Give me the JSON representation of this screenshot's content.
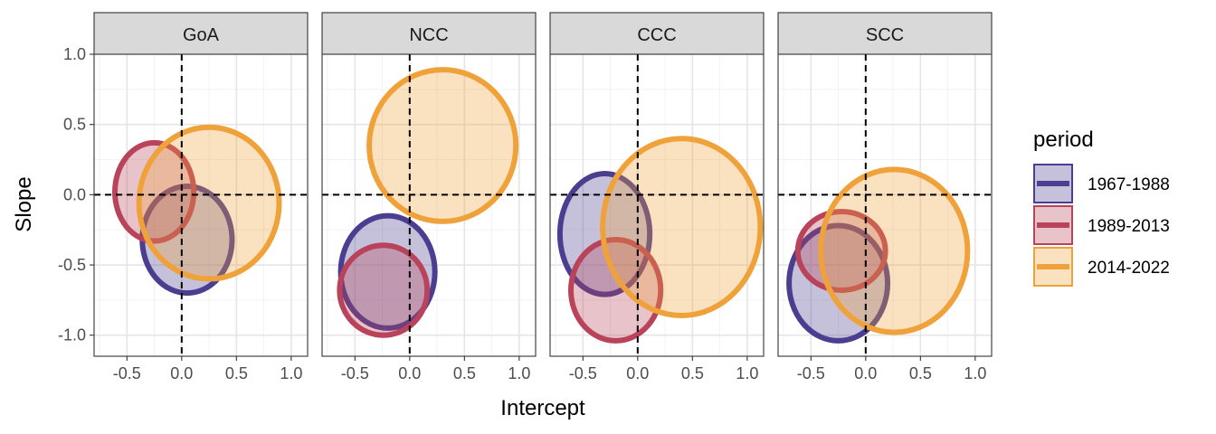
{
  "chart_data": {
    "type": "scatter",
    "xlabel": "Intercept",
    "ylabel": "Slope",
    "xlim": [
      -0.8,
      1.15
    ],
    "ylim": [
      -1.15,
      1.0
    ],
    "x_ticks": [
      -0.5,
      0.0,
      0.5,
      1.0
    ],
    "x_tick_labels": [
      "-0.5",
      "0.0",
      "0.5",
      "1.0"
    ],
    "y_ticks": [
      -1.0,
      -0.5,
      0.0,
      0.5,
      1.0
    ],
    "y_tick_labels": [
      "-1.0",
      "-0.5",
      "0.0",
      "0.5",
      "1.0"
    ],
    "grid": true,
    "reference_lines": {
      "x": 0,
      "y": 0,
      "style": "dashed"
    },
    "legend": {
      "title": "period",
      "position": "right",
      "entries": [
        {
          "label": "1967-1988",
          "color": "#4b3d8f"
        },
        {
          "label": "1989-2013",
          "color": "#b8435a"
        },
        {
          "label": "2014-2022",
          "color": "#f0a23a"
        }
      ]
    },
    "panels": [
      {
        "name": "GoA",
        "ellipses": [
          {
            "period": "1967-1988",
            "cx": 0.05,
            "cy": -0.32,
            "rx": 0.41,
            "ry": 0.38
          },
          {
            "period": "1989-2013",
            "cx": -0.25,
            "cy": 0.02,
            "rx": 0.36,
            "ry": 0.35
          },
          {
            "period": "2014-2022",
            "cx": 0.25,
            "cy": -0.06,
            "rx": 0.64,
            "ry": 0.54
          }
        ]
      },
      {
        "name": "NCC",
        "ellipses": [
          {
            "period": "1967-1988",
            "cx": -0.2,
            "cy": -0.55,
            "rx": 0.43,
            "ry": 0.4
          },
          {
            "period": "1989-2013",
            "cx": -0.24,
            "cy": -0.68,
            "rx": 0.4,
            "ry": 0.32
          },
          {
            "period": "2014-2022",
            "cx": 0.3,
            "cy": 0.35,
            "rx": 0.67,
            "ry": 0.54
          }
        ]
      },
      {
        "name": "CCC",
        "ellipses": [
          {
            "period": "1967-1988",
            "cx": -0.3,
            "cy": -0.28,
            "rx": 0.41,
            "ry": 0.43
          },
          {
            "period": "1989-2013",
            "cx": -0.2,
            "cy": -0.68,
            "rx": 0.41,
            "ry": 0.36
          },
          {
            "period": "2014-2022",
            "cx": 0.4,
            "cy": -0.23,
            "rx": 0.72,
            "ry": 0.63
          }
        ]
      },
      {
        "name": "SCC",
        "ellipses": [
          {
            "period": "1967-1988",
            "cx": -0.25,
            "cy": -0.63,
            "rx": 0.45,
            "ry": 0.41
          },
          {
            "period": "1989-2013",
            "cx": -0.22,
            "cy": -0.4,
            "rx": 0.4,
            "ry": 0.28
          },
          {
            "period": "2014-2022",
            "cx": 0.26,
            "cy": -0.4,
            "rx": 0.67,
            "ry": 0.58
          }
        ]
      }
    ]
  }
}
